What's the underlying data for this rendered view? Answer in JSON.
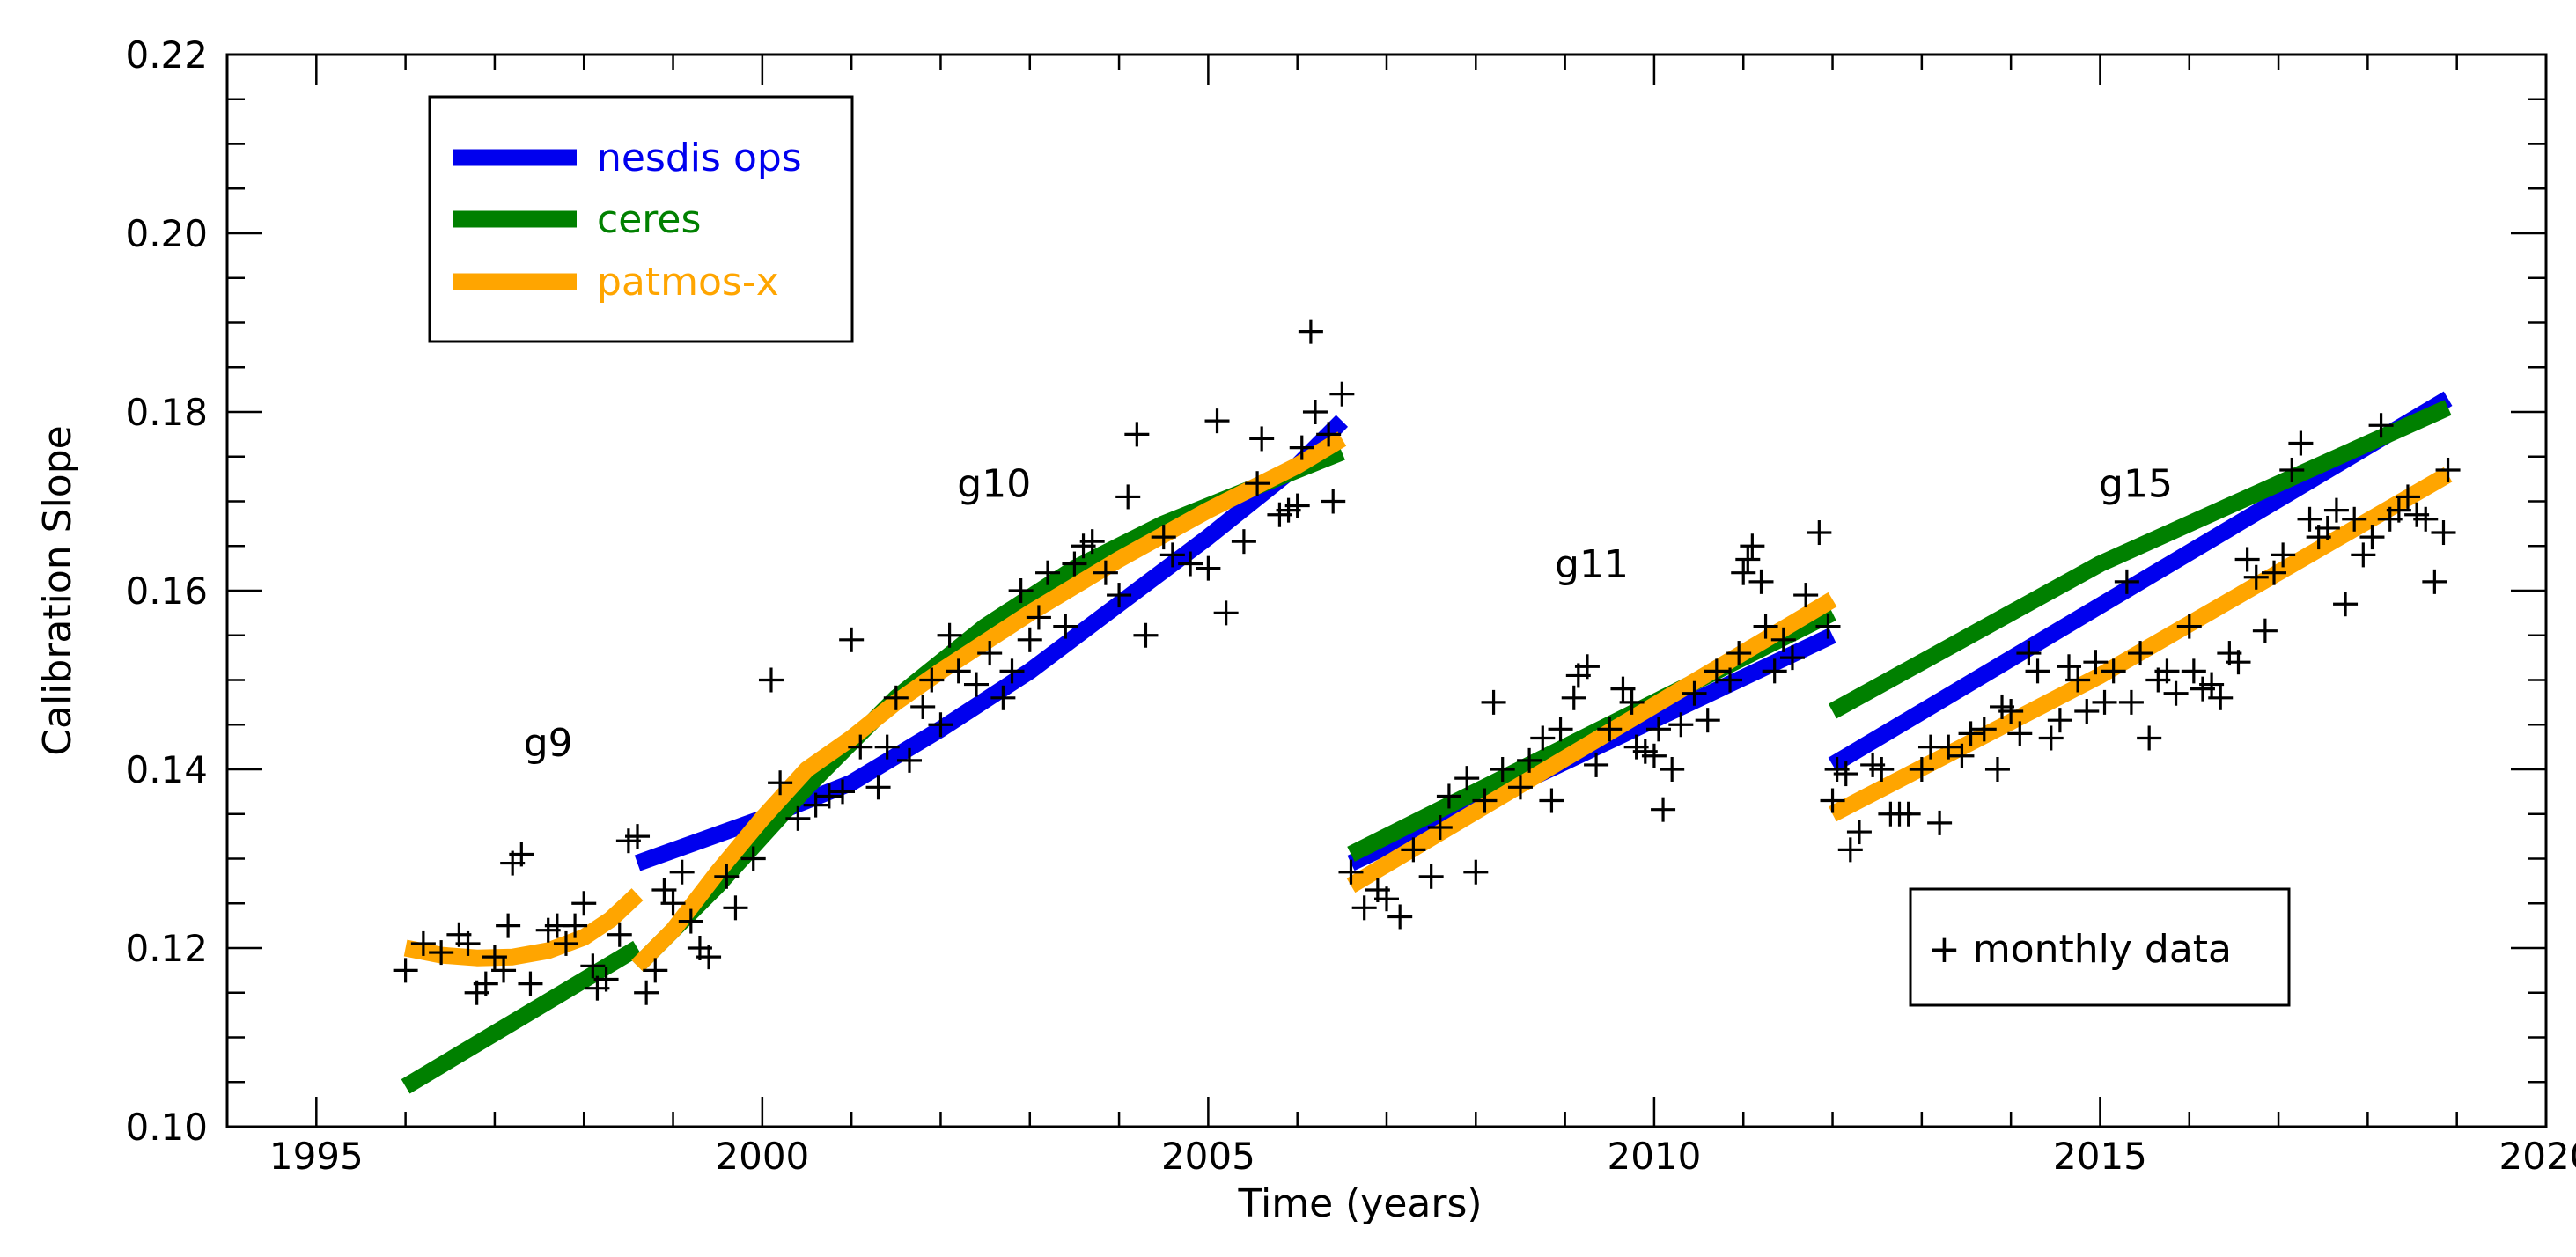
{
  "chart_data": {
    "type": "line",
    "title": "",
    "xlabel": "Time (years)",
    "ylabel": "Calibration Slope",
    "xlim": [
      1994,
      2020
    ],
    "ylim": [
      0.1,
      0.22
    ],
    "xticks": [
      1995,
      2000,
      2005,
      2010,
      2015,
      2020
    ],
    "xtick_labels": [
      "1995",
      "2000",
      "2005",
      "2010",
      "2015",
      "2020"
    ],
    "yticks": [
      0.1,
      0.12,
      0.14,
      0.16,
      0.18,
      0.2,
      0.22
    ],
    "ytick_labels": [
      "0.10",
      "0.12",
      "0.14",
      "0.16",
      "0.18",
      "0.20",
      "0.22"
    ],
    "grid": false,
    "legend_position": "top-left",
    "annotations": [
      {
        "text": "g9",
        "x": 1997.6,
        "y": 0.1415
      },
      {
        "text": "g10",
        "x": 2002.6,
        "y": 0.1705
      },
      {
        "text": "g11",
        "x": 2009.3,
        "y": 0.1615
      },
      {
        "text": "g15",
        "x": 2015.4,
        "y": 0.1705
      }
    ],
    "series": [
      {
        "name": "nesdis ops",
        "color": "#0000ee",
        "segments": [
          [
            [
              1998.6,
              0.1295
            ],
            [
              2000.0,
              0.1345
            ],
            [
              2001.0,
              0.1385
            ],
            [
              2002.0,
              0.1445
            ],
            [
              2003.0,
              0.151
            ],
            [
              2004.0,
              0.1585
            ],
            [
              2005.0,
              0.166
            ],
            [
              2006.0,
              0.174
            ],
            [
              2006.5,
              0.179
            ]
          ],
          [
            [
              2006.6,
              0.1295
            ],
            [
              2012.0,
              0.155
            ]
          ],
          [
            [
              2012.0,
              0.1405
            ],
            [
              2018.9,
              0.1815
            ]
          ]
        ]
      },
      {
        "name": "ceres",
        "color": "#008000",
        "segments": [
          [
            [
              1996.0,
              0.1045
            ],
            [
              1998.6,
              0.12
            ]
          ],
          [
            [
              1998.6,
              0.118
            ],
            [
              1999.5,
              0.127
            ],
            [
              2000.5,
              0.138
            ],
            [
              2001.5,
              0.148
            ],
            [
              2002.5,
              0.156
            ],
            [
              2003.5,
              0.1625
            ],
            [
              2004.5,
              0.1675
            ],
            [
              2005.5,
              0.1715
            ],
            [
              2006.5,
              0.1755
            ]
          ],
          [
            [
              2006.6,
              0.1305
            ],
            [
              2012.0,
              0.1575
            ]
          ],
          [
            [
              2012.0,
              0.1465
            ],
            [
              2015.0,
              0.163
            ],
            [
              2018.9,
              0.1805
            ]
          ]
        ]
      },
      {
        "name": "patmos-x",
        "color": "#ffa500",
        "segments": [
          [
            [
              1996.0,
              0.12
            ],
            [
              1996.4,
              0.1192
            ],
            [
              1996.8,
              0.1189
            ],
            [
              1997.2,
              0.119
            ],
            [
              1997.6,
              0.1197
            ],
            [
              1998.0,
              0.1212
            ],
            [
              1998.3,
              0.1232
            ],
            [
              1998.6,
              0.126
            ]
          ],
          [
            [
              1998.6,
              0.118
            ],
            [
              1999.0,
              0.122
            ],
            [
              1999.5,
              0.1285
            ],
            [
              2000.0,
              0.1345
            ],
            [
              2000.5,
              0.14
            ],
            [
              2001.0,
              0.1435
            ],
            [
              2001.5,
              0.1475
            ],
            [
              2002.0,
              0.151
            ],
            [
              2003.0,
              0.1575
            ],
            [
              2004.0,
              0.1635
            ],
            [
              2005.0,
              0.169
            ],
            [
              2006.0,
              0.174
            ],
            [
              2006.5,
              0.177
            ]
          ],
          [
            [
              2006.6,
              0.127
            ],
            [
              2012.0,
              0.159
            ]
          ],
          [
            [
              2012.0,
              0.135
            ],
            [
              2015.0,
              0.1505
            ],
            [
              2018.9,
              0.173
            ]
          ]
        ]
      }
    ],
    "scatter": {
      "name": "monthly data",
      "marker": "+",
      "legend_label": "+ monthly data",
      "legend_position": "bottom-right",
      "points": [
        [
          1996.0,
          0.1175
        ],
        [
          1996.2,
          0.1205
        ],
        [
          1996.4,
          0.1195
        ],
        [
          1996.6,
          0.1215
        ],
        [
          1996.7,
          0.1205
        ],
        [
          1996.8,
          0.115
        ],
        [
          1996.9,
          0.116
        ],
        [
          1997.0,
          0.119
        ],
        [
          1997.1,
          0.1175
        ],
        [
          1997.15,
          0.1225
        ],
        [
          1997.2,
          0.1295
        ],
        [
          1997.3,
          0.1305
        ],
        [
          1997.4,
          0.116
        ],
        [
          1997.6,
          0.122
        ],
        [
          1997.7,
          0.1225
        ],
        [
          1997.8,
          0.1205
        ],
        [
          1997.9,
          0.1225
        ],
        [
          1998.0,
          0.125
        ],
        [
          1998.1,
          0.118
        ],
        [
          1998.15,
          0.1155
        ],
        [
          1998.25,
          0.1165
        ],
        [
          1998.4,
          0.1215
        ],
        [
          1998.5,
          0.132
        ],
        [
          1998.6,
          0.1325
        ],
        [
          1998.7,
          0.115
        ],
        [
          1998.8,
          0.1175
        ],
        [
          1998.9,
          0.1265
        ],
        [
          1999.0,
          0.125
        ],
        [
          1999.1,
          0.1285
        ],
        [
          1999.2,
          0.123
        ],
        [
          1999.3,
          0.12
        ],
        [
          1999.4,
          0.119
        ],
        [
          1999.6,
          0.128
        ],
        [
          1999.7,
          0.1245
        ],
        [
          1999.9,
          0.13
        ],
        [
          2000.1,
          0.15
        ],
        [
          2000.2,
          0.1385
        ],
        [
          2000.4,
          0.1345
        ],
        [
          2000.6,
          0.136
        ],
        [
          2000.75,
          0.137
        ],
        [
          2000.9,
          0.1375
        ],
        [
          2001.0,
          0.1545
        ],
        [
          2001.1,
          0.1425
        ],
        [
          2001.3,
          0.138
        ],
        [
          2001.4,
          0.1425
        ],
        [
          2001.5,
          0.148
        ],
        [
          2001.65,
          0.141
        ],
        [
          2001.8,
          0.147
        ],
        [
          2001.9,
          0.15
        ],
        [
          2002.0,
          0.145
        ],
        [
          2002.1,
          0.155
        ],
        [
          2002.2,
          0.151
        ],
        [
          2002.4,
          0.1495
        ],
        [
          2002.55,
          0.153
        ],
        [
          2002.7,
          0.148
        ],
        [
          2002.8,
          0.151
        ],
        [
          2002.9,
          0.16
        ],
        [
          2003.0,
          0.1545
        ],
        [
          2003.1,
          0.157
        ],
        [
          2003.2,
          0.162
        ],
        [
          2003.4,
          0.156
        ],
        [
          2003.5,
          0.163
        ],
        [
          2003.6,
          0.165
        ],
        [
          2003.7,
          0.1655
        ],
        [
          2003.85,
          0.162
        ],
        [
          2004.0,
          0.1595
        ],
        [
          2004.1,
          0.1705
        ],
        [
          2004.2,
          0.1775
        ],
        [
          2004.3,
          0.155
        ],
        [
          2004.5,
          0.166
        ],
        [
          2004.6,
          0.164
        ],
        [
          2004.8,
          0.163
        ],
        [
          2005.0,
          0.1625
        ],
        [
          2005.1,
          0.179
        ],
        [
          2005.2,
          0.1575
        ],
        [
          2005.4,
          0.1655
        ],
        [
          2005.55,
          0.172
        ],
        [
          2005.6,
          0.177
        ],
        [
          2005.8,
          0.1685
        ],
        [
          2005.9,
          0.169
        ],
        [
          2006.0,
          0.1695
        ],
        [
          2006.05,
          0.176
        ],
        [
          2006.15,
          0.189
        ],
        [
          2006.2,
          0.18
        ],
        [
          2006.35,
          0.1775
        ],
        [
          2006.4,
          0.17
        ],
        [
          2006.5,
          0.182
        ],
        [
          2006.6,
          0.1285
        ],
        [
          2006.75,
          0.1245
        ],
        [
          2006.9,
          0.1265
        ],
        [
          2007.0,
          0.1255
        ],
        [
          2007.15,
          0.1235
        ],
        [
          2007.3,
          0.131
        ],
        [
          2007.5,
          0.128
        ],
        [
          2007.6,
          0.1335
        ],
        [
          2007.7,
          0.137
        ],
        [
          2007.9,
          0.139
        ],
        [
          2008.0,
          0.1285
        ],
        [
          2008.1,
          0.1365
        ],
        [
          2008.2,
          0.1475
        ],
        [
          2008.3,
          0.14
        ],
        [
          2008.5,
          0.138
        ],
        [
          2008.6,
          0.141
        ],
        [
          2008.75,
          0.1435
        ],
        [
          2008.85,
          0.1365
        ],
        [
          2008.95,
          0.1445
        ],
        [
          2009.1,
          0.148
        ],
        [
          2009.15,
          0.1505
        ],
        [
          2009.25,
          0.1515
        ],
        [
          2009.35,
          0.1405
        ],
        [
          2009.5,
          0.1445
        ],
        [
          2009.65,
          0.149
        ],
        [
          2009.75,
          0.1475
        ],
        [
          2009.8,
          0.1425
        ],
        [
          2009.9,
          0.142
        ],
        [
          2010.0,
          0.1415
        ],
        [
          2010.05,
          0.1445
        ],
        [
          2010.1,
          0.1355
        ],
        [
          2010.2,
          0.14
        ],
        [
          2010.3,
          0.145
        ],
        [
          2010.45,
          0.1485
        ],
        [
          2010.6,
          0.1455
        ],
        [
          2010.7,
          0.151
        ],
        [
          2010.85,
          0.15
        ],
        [
          2010.95,
          0.153
        ],
        [
          2011.0,
          0.162
        ],
        [
          2011.05,
          0.1635
        ],
        [
          2011.1,
          0.165
        ],
        [
          2011.2,
          0.161
        ],
        [
          2011.25,
          0.156
        ],
        [
          2011.35,
          0.151
        ],
        [
          2011.45,
          0.1545
        ],
        [
          2011.55,
          0.1525
        ],
        [
          2011.7,
          0.1595
        ],
        [
          2011.85,
          0.1665
        ],
        [
          2011.95,
          0.156
        ],
        [
          2012.0,
          0.1365
        ],
        [
          2012.05,
          0.14
        ],
        [
          2012.15,
          0.1395
        ],
        [
          2012.2,
          0.131
        ],
        [
          2012.3,
          0.133
        ],
        [
          2012.45,
          0.1405
        ],
        [
          2012.55,
          0.14
        ],
        [
          2012.65,
          0.135
        ],
        [
          2012.75,
          0.135
        ],
        [
          2012.85,
          0.135
        ],
        [
          2013.0,
          0.14
        ],
        [
          2013.1,
          0.1425
        ],
        [
          2013.2,
          0.134
        ],
        [
          2013.3,
          0.1425
        ],
        [
          2013.45,
          0.1415
        ],
        [
          2013.55,
          0.144
        ],
        [
          2013.7,
          0.1445
        ],
        [
          2013.85,
          0.14
        ],
        [
          2013.9,
          0.147
        ],
        [
          2014.0,
          0.1465
        ],
        [
          2014.1,
          0.144
        ],
        [
          2014.2,
          0.153
        ],
        [
          2014.3,
          0.151
        ],
        [
          2014.45,
          0.1435
        ],
        [
          2014.55,
          0.1455
        ],
        [
          2014.65,
          0.1515
        ],
        [
          2014.75,
          0.15
        ],
        [
          2014.85,
          0.1465
        ],
        [
          2014.95,
          0.152
        ],
        [
          2015.05,
          0.1475
        ],
        [
          2015.15,
          0.151
        ],
        [
          2015.3,
          0.161
        ],
        [
          2015.35,
          0.1475
        ],
        [
          2015.45,
          0.153
        ],
        [
          2015.55,
          0.1435
        ],
        [
          2015.65,
          0.15
        ],
        [
          2015.75,
          0.151
        ],
        [
          2015.85,
          0.1485
        ],
        [
          2016.0,
          0.156
        ],
        [
          2016.05,
          0.151
        ],
        [
          2016.15,
          0.149
        ],
        [
          2016.25,
          0.1495
        ],
        [
          2016.35,
          0.148
        ],
        [
          2016.45,
          0.153
        ],
        [
          2016.55,
          0.152
        ],
        [
          2016.65,
          0.1635
        ],
        [
          2016.75,
          0.1615
        ],
        [
          2016.85,
          0.1555
        ],
        [
          2016.95,
          0.162
        ],
        [
          2017.05,
          0.164
        ],
        [
          2017.15,
          0.1735
        ],
        [
          2017.25,
          0.1765
        ],
        [
          2017.35,
          0.168
        ],
        [
          2017.45,
          0.166
        ],
        [
          2017.55,
          0.167
        ],
        [
          2017.65,
          0.169
        ],
        [
          2017.75,
          0.1585
        ],
        [
          2017.85,
          0.168
        ],
        [
          2017.95,
          0.164
        ],
        [
          2018.05,
          0.166
        ],
        [
          2018.15,
          0.1785
        ],
        [
          2018.25,
          0.168
        ],
        [
          2018.35,
          0.169
        ],
        [
          2018.45,
          0.1705
        ],
        [
          2018.55,
          0.1685
        ],
        [
          2018.65,
          0.168
        ],
        [
          2018.75,
          0.161
        ],
        [
          2018.85,
          0.1665
        ],
        [
          2018.9,
          0.1735
        ]
      ]
    }
  }
}
